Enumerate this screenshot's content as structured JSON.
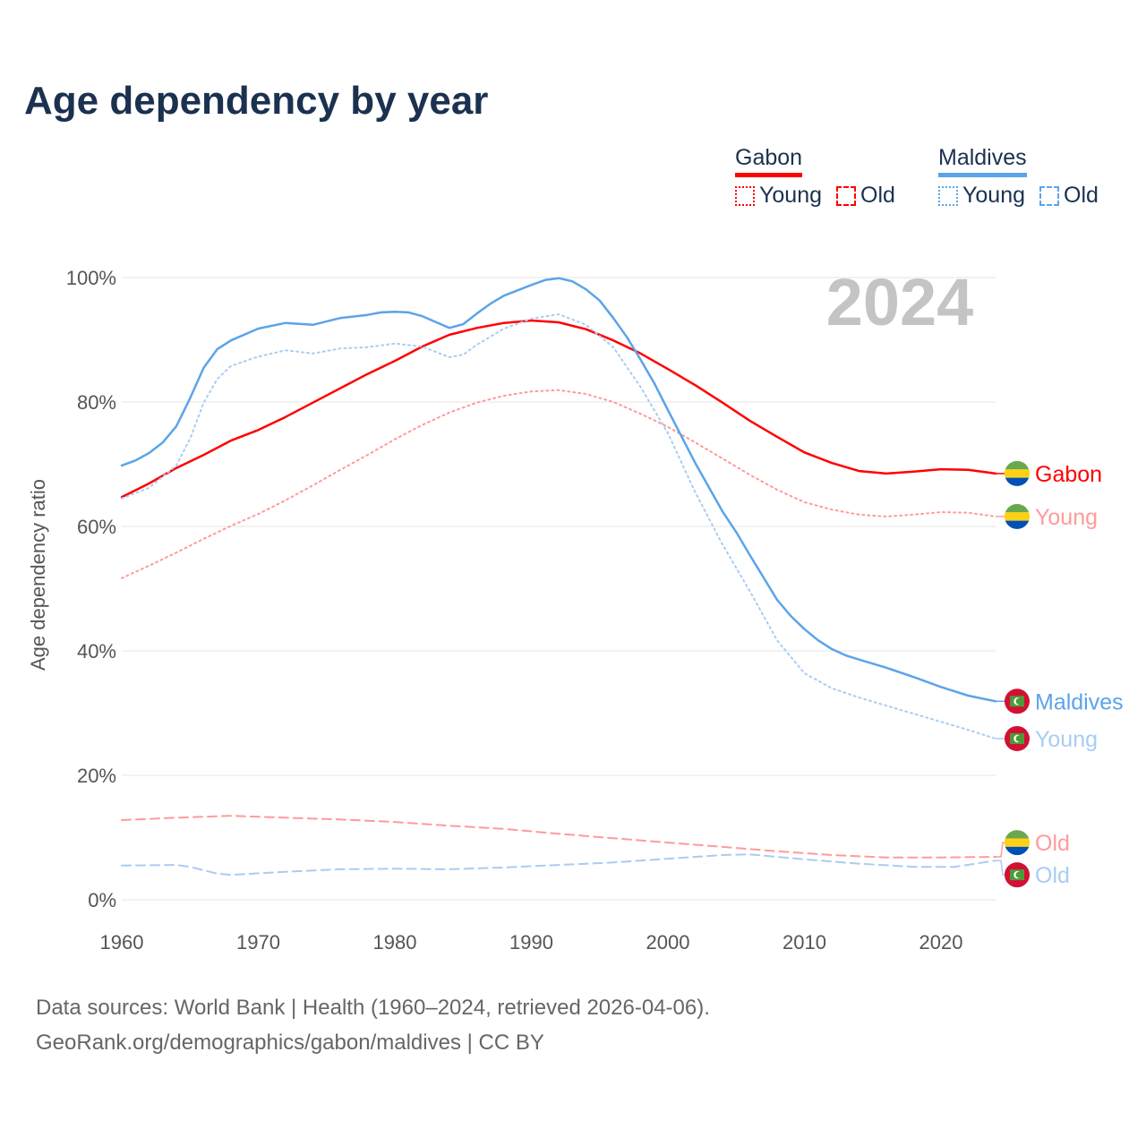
{
  "title": "Age dependency by year",
  "legend": {
    "groups": [
      {
        "country": "Gabon",
        "color": "#ff0000",
        "young_label": "Young",
        "old_label": "Old"
      },
      {
        "country": "Maldives",
        "color": "#5ba4ea",
        "young_label": "Young",
        "old_label": "Old"
      }
    ]
  },
  "source": {
    "line1": "Data sources: World Bank | Health (1960–2024, retrieved 2026-04-06).",
    "line2": "GeoRank.org/demographics/gabon/maldives | CC BY"
  },
  "chart_data": {
    "type": "line",
    "title": "Age dependency by year",
    "xlabel": "",
    "ylabel": "Age dependency ratio",
    "year_watermark": "2024",
    "xlim": [
      1960,
      2024
    ],
    "ylim": [
      0,
      100
    ],
    "x_ticks": [
      1960,
      1970,
      1980,
      1990,
      2000,
      2010,
      2020
    ],
    "y_ticks": [
      0,
      20,
      40,
      60,
      80,
      100
    ],
    "y_tick_labels": [
      "0%",
      "20%",
      "40%",
      "60%",
      "80%",
      "100%"
    ],
    "grid": true,
    "series": [
      {
        "name": "Gabon",
        "label": "Gabon",
        "country": "gabon",
        "style": "solid",
        "color": "#ff0000",
        "x": [
          1960,
          1962,
          1964,
          1966,
          1968,
          1970,
          1972,
          1974,
          1976,
          1978,
          1980,
          1982,
          1984,
          1986,
          1988,
          1990,
          1992,
          1994,
          1996,
          1998,
          2000,
          2002,
          2004,
          2006,
          2008,
          2010,
          2012,
          2014,
          2016,
          2018,
          2020,
          2022,
          2024
        ],
        "y": [
          64.7,
          66.9,
          69.4,
          71.5,
          73.8,
          75.5,
          77.6,
          79.9,
          82.2,
          84.5,
          86.6,
          88.9,
          90.8,
          91.9,
          92.7,
          93.1,
          92.8,
          91.7,
          89.9,
          87.8,
          85.3,
          82.7,
          79.9,
          77.0,
          74.4,
          71.9,
          70.2,
          68.9,
          68.5,
          68.8,
          69.2,
          69.1,
          68.5
        ]
      },
      {
        "name": "Gabon Young",
        "label": "Young",
        "country": "gabon",
        "style": "dotted",
        "color": "#ff9a9a",
        "x": [
          1960,
          1962,
          1964,
          1966,
          1968,
          1970,
          1972,
          1974,
          1976,
          1978,
          1980,
          1982,
          1984,
          1986,
          1988,
          1990,
          1992,
          1994,
          1996,
          1998,
          2000,
          2002,
          2004,
          2006,
          2008,
          2010,
          2012,
          2014,
          2016,
          2018,
          2020,
          2022,
          2024
        ],
        "y": [
          51.7,
          53.7,
          55.8,
          58.0,
          60.1,
          62.0,
          64.2,
          66.6,
          69.1,
          71.5,
          74.0,
          76.3,
          78.3,
          79.9,
          81.0,
          81.7,
          81.9,
          81.3,
          80.0,
          78.1,
          76.0,
          73.5,
          70.9,
          68.3,
          65.9,
          63.9,
          62.7,
          61.9,
          61.6,
          61.9,
          62.3,
          62.2,
          61.6
        ]
      },
      {
        "name": "Gabon Old",
        "label": "Old",
        "country": "gabon",
        "style": "dashed",
        "color": "#ff9a9a",
        "x": [
          1960,
          1964,
          1968,
          1972,
          1976,
          1980,
          1984,
          1988,
          1992,
          1996,
          2000,
          2004,
          2008,
          2012,
          2016,
          2020,
          2024
        ],
        "y": [
          12.8,
          13.2,
          13.5,
          13.2,
          12.9,
          12.5,
          11.9,
          11.4,
          10.6,
          9.9,
          9.2,
          8.5,
          7.8,
          7.2,
          6.8,
          6.8,
          6.9
        ]
      },
      {
        "name": "Maldives",
        "label": "Maldives",
        "country": "maldives",
        "style": "solid",
        "color": "#5ba4ea",
        "x": [
          1960,
          1961,
          1962,
          1963,
          1964,
          1965,
          1966,
          1967,
          1968,
          1970,
          1972,
          1974,
          1976,
          1978,
          1979,
          1980,
          1981,
          1982,
          1984,
          1985,
          1986,
          1987,
          1988,
          1990,
          1991,
          1992,
          1993,
          1994,
          1995,
          1996,
          1997,
          1998,
          1999,
          2000,
          2002,
          2004,
          2005,
          2006,
          2007,
          2008,
          2009,
          2010,
          2011,
          2012,
          2013,
          2014,
          2016,
          2018,
          2020,
          2021,
          2022,
          2024
        ],
        "y": [
          69.8,
          70.6,
          71.8,
          73.5,
          76.1,
          80.6,
          85.5,
          88.5,
          89.9,
          91.8,
          92.7,
          92.4,
          93.5,
          94.0,
          94.4,
          94.5,
          94.4,
          93.8,
          91.9,
          92.5,
          94.2,
          95.8,
          97.1,
          98.8,
          99.6,
          99.9,
          99.4,
          98.1,
          96.3,
          93.5,
          90.4,
          86.8,
          83.0,
          78.7,
          70.2,
          62.4,
          59.1,
          55.4,
          51.8,
          48.2,
          45.6,
          43.5,
          41.7,
          40.3,
          39.3,
          38.6,
          37.3,
          35.8,
          34.2,
          33.5,
          32.8,
          31.9
        ]
      },
      {
        "name": "Maldives Young",
        "label": "Young",
        "country": "maldives",
        "style": "dotted",
        "color": "#a8cdf2",
        "x": [
          1960,
          1962,
          1964,
          1965,
          1966,
          1967,
          1968,
          1970,
          1972,
          1974,
          1976,
          1978,
          1980,
          1982,
          1984,
          1985,
          1986,
          1988,
          1990,
          1992,
          1994,
          1996,
          1998,
          2000,
          2002,
          2004,
          2006,
          2008,
          2010,
          2012,
          2014,
          2016,
          2018,
          2020,
          2022,
          2024
        ],
        "y": [
          64.5,
          66.2,
          69.8,
          74.1,
          79.9,
          83.7,
          85.8,
          87.3,
          88.3,
          87.8,
          88.6,
          88.8,
          89.4,
          88.9,
          87.2,
          87.6,
          89.2,
          91.8,
          93.4,
          94.1,
          92.4,
          88.8,
          82.4,
          75.0,
          65.5,
          57.1,
          49.6,
          41.7,
          36.4,
          34.0,
          32.5,
          31.2,
          29.9,
          28.6,
          27.3,
          25.9
        ]
      },
      {
        "name": "Maldives Old",
        "label": "Old",
        "country": "maldives",
        "style": "dashed",
        "color": "#a8cdf2",
        "x": [
          1960,
          1964,
          1965,
          1967,
          1968,
          1972,
          1976,
          1980,
          1984,
          1988,
          1992,
          1996,
          2000,
          2004,
          2006,
          2010,
          2014,
          2018,
          2021,
          2024
        ],
        "y": [
          5.5,
          5.6,
          5.3,
          4.2,
          4.0,
          4.5,
          4.9,
          5.0,
          4.9,
          5.2,
          5.6,
          6.0,
          6.6,
          7.2,
          7.3,
          6.5,
          5.8,
          5.3,
          5.3,
          6.3
        ]
      }
    ],
    "label_colors": {
      "Gabon": "#ff0000",
      "Gabon Young": "#ff9a9a",
      "Gabon Old": "#ff9a9a",
      "Maldives": "#5ba4ea",
      "Maldives Young": "#a8cdf2",
      "Maldives Old": "#a8cdf2"
    }
  }
}
